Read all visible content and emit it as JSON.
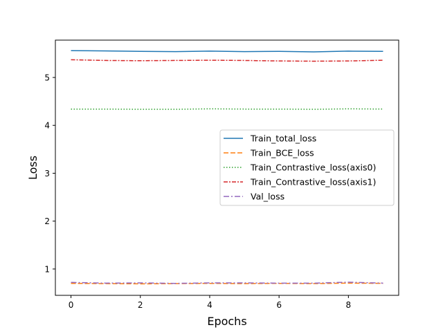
{
  "chart_data": {
    "type": "line",
    "title": "",
    "xlabel": "Epochs",
    "ylabel": "Loss",
    "xlim": [
      -0.45,
      9.45
    ],
    "ylim": [
      0.45,
      5.78
    ],
    "xticks": [
      0,
      2,
      4,
      6,
      8
    ],
    "yticks": [
      1,
      2,
      3,
      4,
      5
    ],
    "grid": false,
    "legend_position": "center-right",
    "x": [
      0,
      1,
      2,
      3,
      4,
      5,
      6,
      7,
      8,
      9
    ],
    "series": [
      {
        "name": "Train_total_loss",
        "color": "#1f77b4",
        "style": "solid",
        "values": [
          5.56,
          5.555,
          5.545,
          5.54,
          5.55,
          5.54,
          5.545,
          5.535,
          5.55,
          5.545
        ]
      },
      {
        "name": "Train_BCE_loss",
        "color": "#ff7f0e",
        "style": "dashed",
        "values": [
          0.7,
          0.695,
          0.69,
          0.695,
          0.7,
          0.695,
          0.7,
          0.695,
          0.705,
          0.7
        ]
      },
      {
        "name": "Train_Contrastive_loss(axis0)",
        "color": "#2ca02c",
        "style": "dotted",
        "values": [
          4.34,
          4.34,
          4.335,
          4.335,
          4.345,
          4.34,
          4.34,
          4.335,
          4.345,
          4.34
        ]
      },
      {
        "name": "Train_Contrastive_loss(axis1)",
        "color": "#d62728",
        "style": "dashdot-short",
        "values": [
          5.37,
          5.355,
          5.35,
          5.355,
          5.36,
          5.355,
          5.345,
          5.34,
          5.345,
          5.36
        ]
      },
      {
        "name": "Val_loss",
        "color": "#9467bd",
        "style": "dashdot",
        "values": [
          0.72,
          0.705,
          0.71,
          0.7,
          0.71,
          0.71,
          0.705,
          0.705,
          0.725,
          0.705
        ]
      }
    ]
  }
}
